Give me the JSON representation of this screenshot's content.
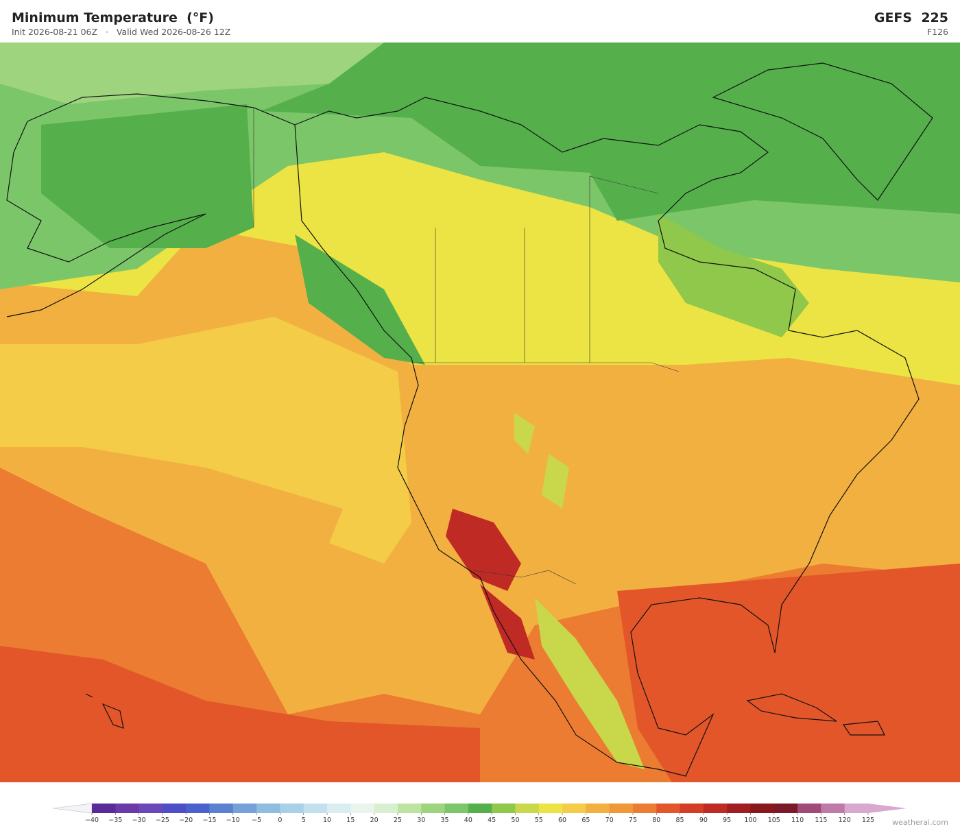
{
  "header": {
    "title": "Minimum Temperature  (°F)",
    "init": "Init 2026-08-21 06Z",
    "separator": "·",
    "valid": "Valid Wed 2026-08-26 12Z",
    "model": "GEFS  225",
    "forecast_hour": "F126"
  },
  "colorbar": {
    "ticks": [
      {
        "value": -40,
        "label": "−40"
      },
      {
        "value": -35,
        "label": "−35"
      },
      {
        "value": -30,
        "label": "−30"
      },
      {
        "value": -25,
        "label": "−25"
      },
      {
        "value": -20,
        "label": "−20"
      },
      {
        "value": -15,
        "label": "−15"
      },
      {
        "value": -10,
        "label": "−10"
      },
      {
        "value": -5,
        "label": "−5"
      },
      0,
      5,
      10,
      15,
      20,
      25,
      30,
      35,
      40,
      45,
      50,
      55,
      60,
      65,
      70,
      75,
      80,
      85,
      90,
      95,
      100,
      105,
      110,
      115,
      120,
      125
    ],
    "colors": [
      "#5a2a9a",
      "#6a3aa8",
      "#6a48b8",
      "#4e4ec8",
      "#4a62cc",
      "#5a82d0",
      "#78a0d8",
      "#90bce0",
      "#a8d0e8",
      "#c2e0ee",
      "#daeef2",
      "#e8f4ec",
      "#d8efd0",
      "#bde3a0",
      "#9ed47e",
      "#7cc66a",
      "#55b04c",
      "#8fc84a",
      "#c8d84a",
      "#ece444",
      "#f4cc48",
      "#f2b040",
      "#f09838",
      "#ec7c32",
      "#e2562a",
      "#d43c26",
      "#c02a24",
      "#a01e20",
      "#88181c",
      "#7a1a26",
      "#a04a78",
      "#c07aa8",
      "#d8a8d0"
    ],
    "extend_low_color": "#f4f4f8",
    "extend_high_color": "#d8a8d0"
  },
  "credit": "weatherai.com"
}
